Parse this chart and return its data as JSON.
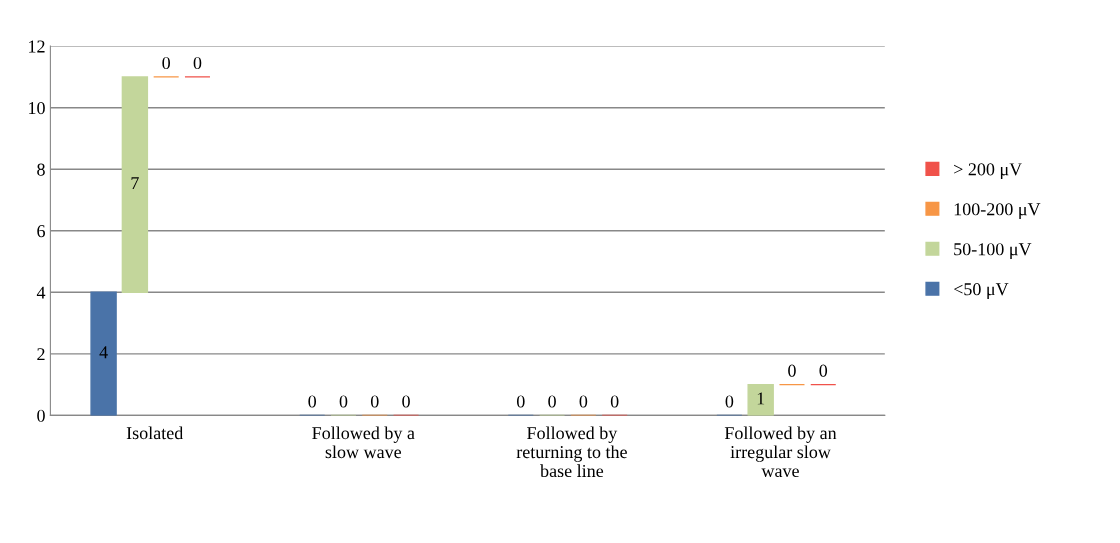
{
  "chart_data": {
    "type": "bar",
    "stacked": true,
    "categories": [
      "Isolated",
      "Followed by a\nslow wave",
      "Followed by\nreturning to the\nbase line",
      "Followed by an\nirregular slow\nwave"
    ],
    "series": [
      {
        "name": "<50 μV",
        "color": "#4a73a8",
        "values": [
          4,
          0,
          0,
          0
        ]
      },
      {
        "name": "50-100 μV",
        "color": "#c3d69b",
        "values": [
          7,
          0,
          0,
          1
        ]
      },
      {
        "name": "100-200 μV",
        "color": "#f79646",
        "values": [
          0,
          0,
          0,
          0
        ]
      },
      {
        "name": "> 200 μV",
        "color": "#f0524a",
        "values": [
          0,
          0,
          0,
          0
        ]
      }
    ],
    "ylim": [
      0,
      12
    ],
    "yticks": [
      0,
      2,
      4,
      6,
      8,
      10,
      12
    ],
    "grid": "y",
    "legend": "right",
    "data_labels": true
  }
}
